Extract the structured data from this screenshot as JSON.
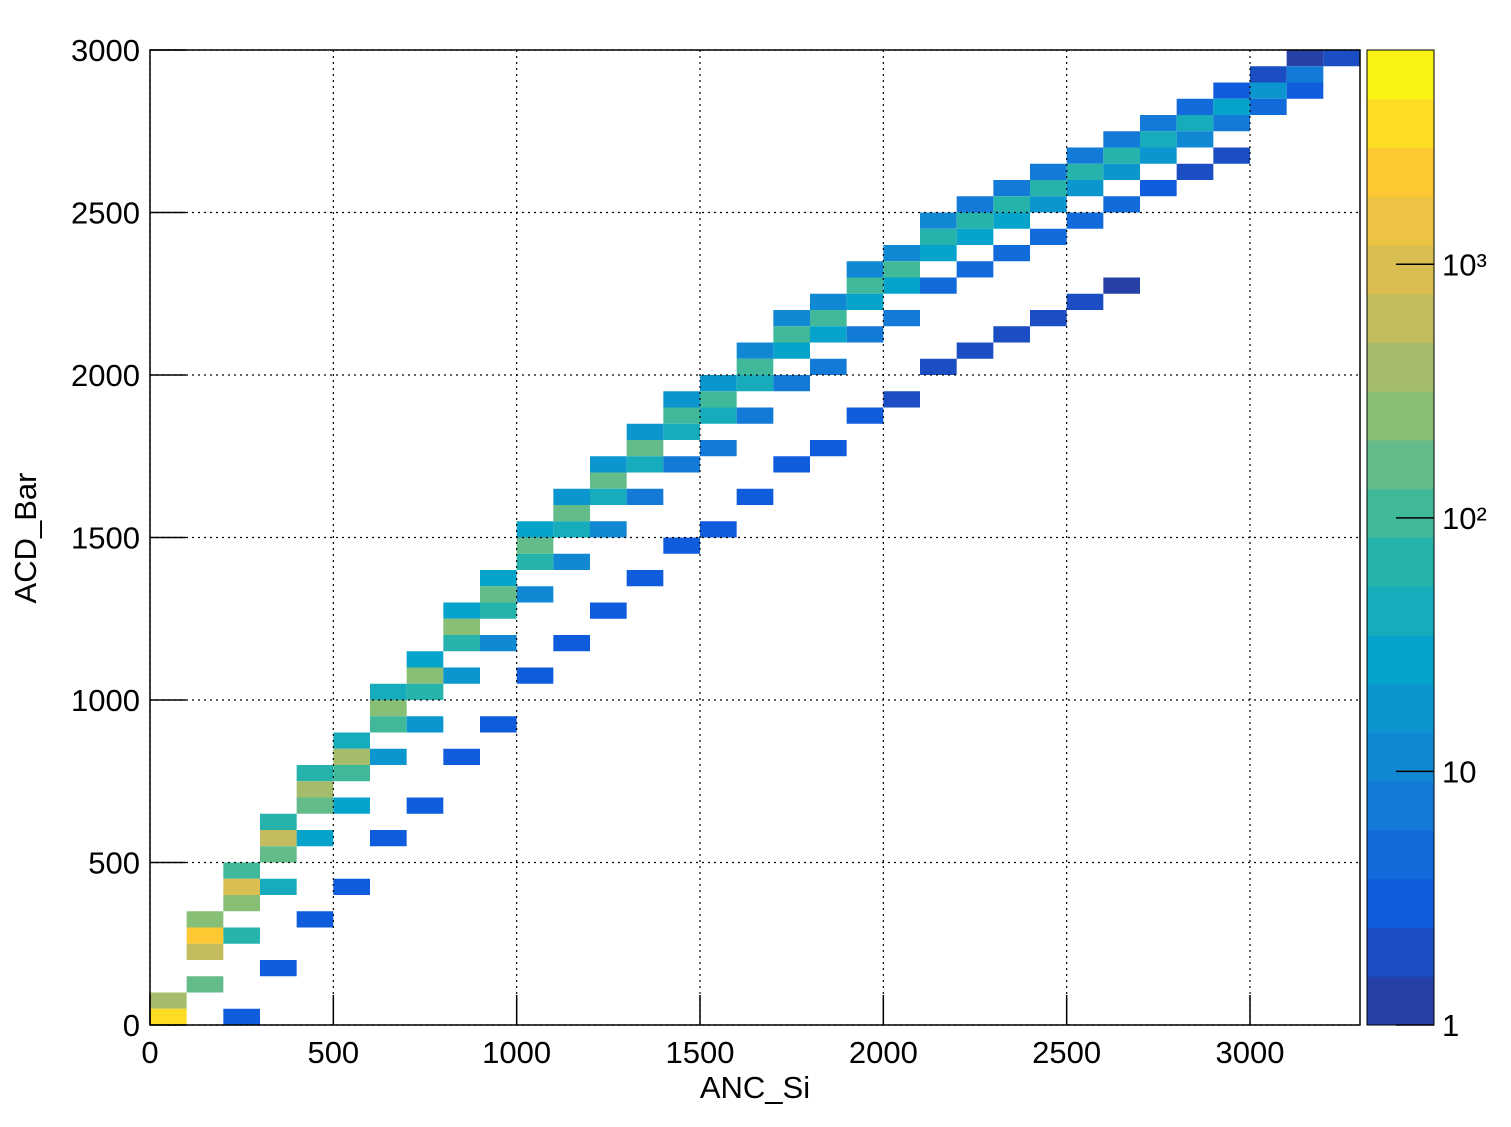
{
  "chart_data": {
    "type": "hist2d",
    "x_label": "ANC_Si",
    "y_label": "ACD_Bar",
    "xlim": [
      0,
      3300
    ],
    "ylim": [
      0,
      3000
    ],
    "xticks": [
      0,
      500,
      1000,
      1500,
      2000,
      2500,
      3000
    ],
    "yticks": [
      0,
      500,
      1000,
      1500,
      2000,
      2500,
      3000
    ],
    "grid": true,
    "xbin_width": 100,
    "ybin_width": 50,
    "zlim": [
      1,
      7000
    ],
    "zlog": true,
    "zticks": [
      1,
      10,
      {
        "value": 100,
        "label": "10²"
      },
      {
        "value": 1000,
        "label": "10³"
      }
    ],
    "palette": [
      "#2b3a9a",
      "#0f5cdd",
      "#1481d6",
      "#06a4ca",
      "#2eb7a4",
      "#87bf77",
      "#d1bb59",
      "#fec832",
      "#f9fb0e"
    ],
    "cells": [
      [
        0,
        50,
        375
      ],
      [
        0,
        0,
        3000
      ],
      [
        100,
        300,
        250
      ],
      [
        100,
        250,
        2000
      ],
      [
        100,
        200,
        667
      ],
      [
        100,
        100,
        133
      ],
      [
        200,
        450,
        113
      ],
      [
        200,
        400,
        900
      ],
      [
        200,
        350,
        300
      ],
      [
        200,
        250,
        60
      ],
      [
        200,
        0,
        3
      ],
      [
        300,
        600,
        75
      ],
      [
        300,
        550,
        600
      ],
      [
        300,
        500,
        200
      ],
      [
        300,
        400,
        40
      ],
      [
        300,
        150,
        3
      ],
      [
        400,
        750,
        56
      ],
      [
        400,
        700,
        450
      ],
      [
        400,
        650,
        150
      ],
      [
        400,
        550,
        30
      ],
      [
        400,
        300,
        3
      ],
      [
        500,
        850,
        44
      ],
      [
        500,
        800,
        350
      ],
      [
        500,
        750,
        117
      ],
      [
        500,
        650,
        23
      ],
      [
        500,
        400,
        3
      ],
      [
        600,
        1000,
        38
      ],
      [
        600,
        950,
        300
      ],
      [
        600,
        900,
        100
      ],
      [
        600,
        800,
        20
      ],
      [
        600,
        550,
        3
      ],
      [
        700,
        1100,
        31
      ],
      [
        700,
        1050,
        250
      ],
      [
        700,
        1000,
        83
      ],
      [
        700,
        900,
        17
      ],
      [
        700,
        650,
        3
      ],
      [
        800,
        1250,
        28
      ],
      [
        800,
        1200,
        220
      ],
      [
        800,
        1150,
        73
      ],
      [
        800,
        1050,
        15
      ],
      [
        800,
        800,
        3
      ],
      [
        900,
        1350,
        25
      ],
      [
        900,
        1300,
        200
      ],
      [
        900,
        1250,
        67
      ],
      [
        900,
        1150,
        13
      ],
      [
        900,
        900,
        3
      ],
      [
        1000,
        1500,
        23
      ],
      [
        1000,
        1450,
        180
      ],
      [
        1000,
        1400,
        60
      ],
      [
        1000,
        1300,
        12
      ],
      [
        1000,
        1050,
        3
      ],
      [
        1100,
        1600,
        20
      ],
      [
        1100,
        1550,
        160
      ],
      [
        1100,
        1500,
        53
      ],
      [
        1100,
        1400,
        11
      ],
      [
        1100,
        1150,
        3
      ],
      [
        1200,
        1700,
        19
      ],
      [
        1200,
        1650,
        150
      ],
      [
        1200,
        1600,
        50
      ],
      [
        1200,
        1500,
        10
      ],
      [
        1200,
        1250,
        3
      ],
      [
        1300,
        1800,
        18
      ],
      [
        1300,
        1750,
        140
      ],
      [
        1300,
        1700,
        47
      ],
      [
        1300,
        1600,
        9
      ],
      [
        1300,
        1350,
        3
      ],
      [
        1400,
        1900,
        16
      ],
      [
        1400,
        1850,
        130
      ],
      [
        1400,
        1800,
        43
      ],
      [
        1400,
        1700,
        9
      ],
      [
        1400,
        1450,
        3
      ],
      [
        1500,
        1950,
        15
      ],
      [
        1500,
        1900,
        120
      ],
      [
        1500,
        1850,
        40
      ],
      [
        1500,
        1750,
        8
      ],
      [
        1500,
        1500,
        3
      ],
      [
        1600,
        2050,
        14
      ],
      [
        1600,
        2000,
        110
      ],
      [
        1600,
        1950,
        37
      ],
      [
        1600,
        1850,
        7
      ],
      [
        1600,
        1600,
        3
      ],
      [
        1700,
        2150,
        13
      ],
      [
        1700,
        2100,
        100
      ],
      [
        1700,
        2050,
        33
      ],
      [
        1700,
        1950,
        7
      ],
      [
        1700,
        1700,
        3
      ],
      [
        1800,
        2200,
        12
      ],
      [
        1800,
        2150,
        95
      ],
      [
        1800,
        2100,
        32
      ],
      [
        1800,
        2000,
        6
      ],
      [
        1800,
        1750,
        3
      ],
      [
        1900,
        2300,
        11
      ],
      [
        1900,
        2250,
        90
      ],
      [
        1900,
        2200,
        30
      ],
      [
        1900,
        2100,
        6
      ],
      [
        1900,
        1850,
        3
      ],
      [
        2000,
        2350,
        11
      ],
      [
        2000,
        2300,
        85
      ],
      [
        2000,
        2250,
        28
      ],
      [
        2000,
        2150,
        6
      ],
      [
        2000,
        1900,
        2
      ],
      [
        2100,
        2450,
        10
      ],
      [
        2100,
        2400,
        80
      ],
      [
        2100,
        2350,
        27
      ],
      [
        2100,
        2250,
        5
      ],
      [
        2100,
        2000,
        2
      ],
      [
        2200,
        2500,
        9
      ],
      [
        2200,
        2450,
        75
      ],
      [
        2200,
        2400,
        25
      ],
      [
        2200,
        2300,
        5
      ],
      [
        2200,
        2050,
        2
      ],
      [
        2300,
        2550,
        9
      ],
      [
        2300,
        2500,
        70
      ],
      [
        2300,
        2450,
        23
      ],
      [
        2300,
        2350,
        5
      ],
      [
        2300,
        2100,
        2
      ],
      [
        2400,
        2600,
        8
      ],
      [
        2400,
        2550,
        65
      ],
      [
        2400,
        2500,
        22
      ],
      [
        2400,
        2400,
        4
      ],
      [
        2400,
        2150,
        2
      ],
      [
        2500,
        2650,
        8
      ],
      [
        2500,
        2600,
        60
      ],
      [
        2500,
        2550,
        20
      ],
      [
        2500,
        2450,
        4
      ],
      [
        2500,
        2200,
        2
      ],
      [
        2600,
        2700,
        7
      ],
      [
        2600,
        2650,
        55
      ],
      [
        2600,
        2600,
        18
      ],
      [
        2600,
        2500,
        4
      ],
      [
        2600,
        2250,
        1
      ],
      [
        2700,
        2750,
        6
      ],
      [
        2700,
        2700,
        45
      ],
      [
        2700,
        2650,
        15
      ],
      [
        2700,
        2550,
        3
      ],
      [
        2800,
        2800,
        4
      ],
      [
        2800,
        2750,
        35
      ],
      [
        2800,
        2700,
        12
      ],
      [
        2800,
        2600,
        2
      ],
      [
        2900,
        2850,
        3
      ],
      [
        2900,
        2800,
        25
      ],
      [
        2900,
        2750,
        8
      ],
      [
        2900,
        2650,
        2
      ],
      [
        3000,
        2900,
        2
      ],
      [
        3000,
        2850,
        15
      ],
      [
        3000,
        2800,
        5
      ],
      [
        3100,
        2950,
        1
      ],
      [
        3100,
        2900,
        8
      ],
      [
        3100,
        2850,
        3
      ],
      [
        3200,
        2950,
        2
      ]
    ]
  }
}
